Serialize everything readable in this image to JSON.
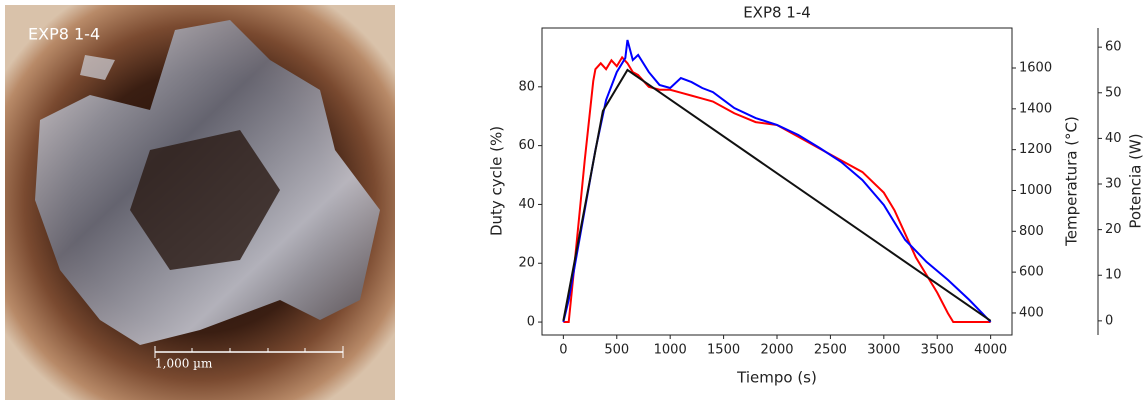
{
  "image": {
    "label": "EXP8 1-4",
    "scale_bar": "1,000 µm"
  },
  "chart_data": {
    "type": "line",
    "title": "EXP8 1-4",
    "x_label": "Tiempo (s)",
    "y_label": "Duty cycle (%)",
    "y2_label": "Temperatura (°C)",
    "y3_label": "Potencia (W)",
    "xlim": [
      -200,
      4200
    ],
    "xticks": [
      0,
      500,
      1000,
      1500,
      2000,
      2500,
      3000,
      3500,
      4000
    ],
    "ylim": [
      -4.4,
      100
    ],
    "yticks": [
      0,
      20,
      40,
      60,
      80
    ],
    "y2lim": [
      292,
      1796
    ],
    "y2ticks": [
      400,
      600,
      800,
      1000,
      1200,
      1400,
      1600
    ],
    "y3lim": [
      -3.1,
      64.2
    ],
    "y3ticks": [
      0,
      10,
      20,
      30,
      40,
      50,
      60
    ],
    "series": [
      {
        "color": "#ff0000",
        "axis": "y",
        "x": [
          0,
          50,
          100,
          200,
          280,
          300,
          350,
          400,
          450,
          500,
          550,
          600,
          650,
          700,
          800,
          900,
          1000,
          1100,
          1200,
          1300,
          1400,
          1500,
          1600,
          1800,
          2000,
          2200,
          2400,
          2600,
          2800,
          3000,
          3100,
          3200,
          3300,
          3400,
          3500,
          3600,
          3650,
          4000
        ],
        "values": [
          0,
          0,
          18,
          55,
          82,
          86,
          88,
          86,
          89,
          87,
          90,
          88,
          85,
          84,
          80,
          79,
          79,
          78,
          77,
          76,
          75,
          73,
          71,
          68,
          67,
          63,
          59,
          55,
          51,
          44,
          38,
          30,
          22,
          16,
          10,
          3,
          0,
          0
        ]
      },
      {
        "color": "#0000ff",
        "axis": "y2",
        "x": [
          0,
          50,
          150,
          300,
          400,
          500,
          580,
          600,
          650,
          700,
          800,
          900,
          1000,
          1100,
          1200,
          1300,
          1400,
          1500,
          1600,
          1800,
          2000,
          2200,
          2400,
          2600,
          2800,
          3000,
          3200,
          3400,
          3600,
          3800,
          4000
        ],
        "values": [
          356,
          464,
          758,
          1198,
          1443,
          1580,
          1649,
          1737,
          1639,
          1664,
          1580,
          1517,
          1502,
          1551,
          1531,
          1502,
          1482,
          1443,
          1404,
          1355,
          1321,
          1272,
          1208,
          1140,
          1051,
          929,
          758,
          650,
          562,
          464,
          356
        ]
      },
      {
        "color": "#111111",
        "axis": "y3",
        "x": [
          0,
          370,
          600,
          4000
        ],
        "values": [
          0,
          46,
          55,
          0
        ]
      }
    ]
  }
}
